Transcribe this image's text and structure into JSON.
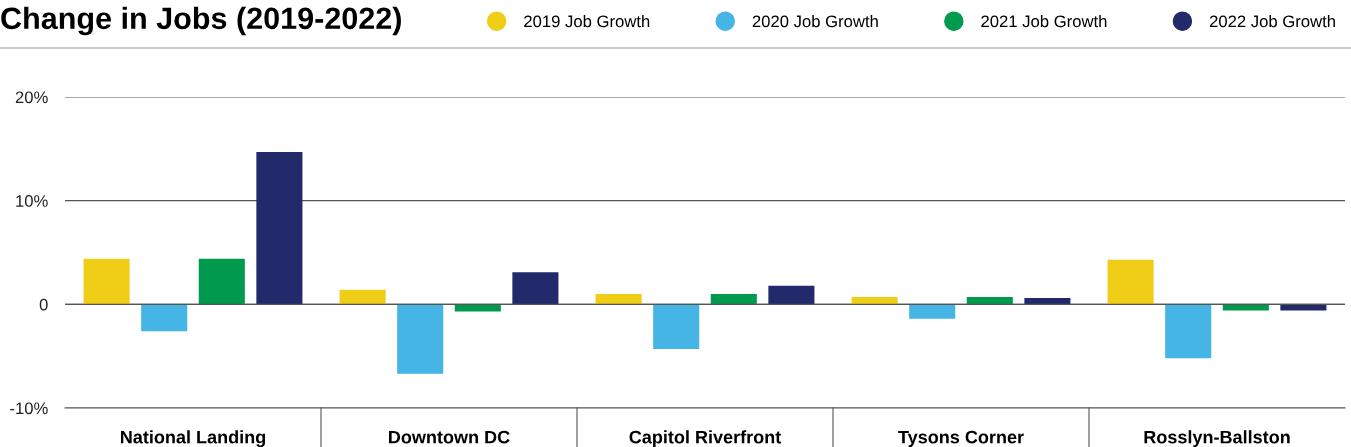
{
  "chart_data": {
    "type": "bar",
    "title": "Change in Jobs (2019-2022)",
    "categories": [
      "National Landing",
      "Downtown DC",
      "Capitol Riverfront",
      "Tysons Corner",
      "Rosslyn-Ballston"
    ],
    "series": [
      {
        "name": "2019 Job Growth",
        "color": "#f0cd17",
        "values": [
          4.4,
          1.4,
          1.0,
          0.7,
          4.3
        ]
      },
      {
        "name": "2020 Job Growth",
        "color": "#45b5e6",
        "values": [
          -2.6,
          -6.7,
          -4.3,
          -1.4,
          -5.2
        ]
      },
      {
        "name": "2021 Job Growth",
        "color": "#009a4e",
        "values": [
          4.4,
          -0.7,
          1.0,
          0.7,
          -0.6
        ]
      },
      {
        "name": "2022 Job Growth",
        "color": "#232a6b",
        "values": [
          14.7,
          3.1,
          1.8,
          0.6,
          -0.6
        ]
      }
    ],
    "ylim": [
      -10,
      20
    ],
    "yticks": [
      {
        "value": -10,
        "label": "-10%"
      },
      0,
      {
        "value": 10,
        "label": "10%"
      },
      {
        "value": 20,
        "label": "20%"
      }
    ],
    "grid": "y",
    "legend": "top right"
  }
}
